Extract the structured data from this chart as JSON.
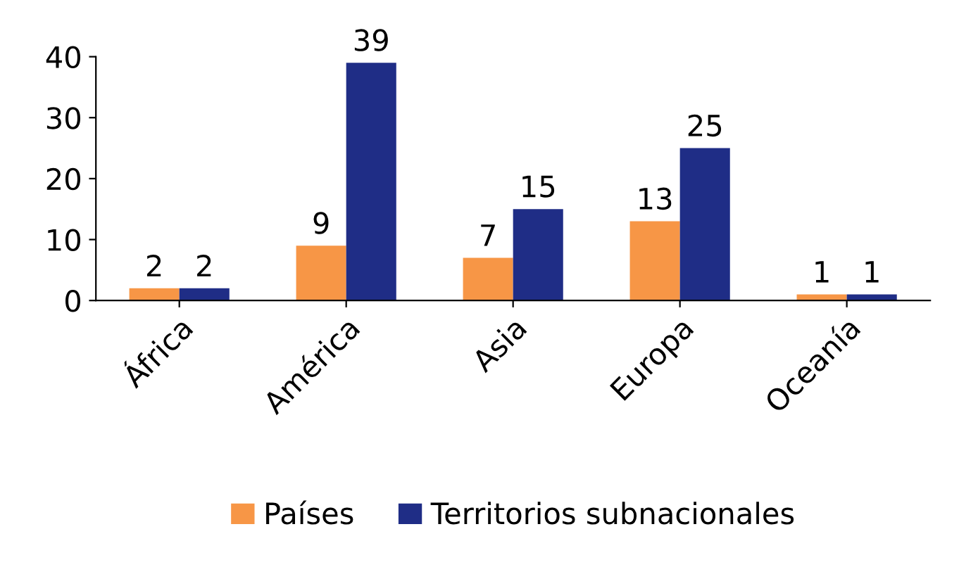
{
  "chart_data": {
    "type": "bar",
    "categories": [
      "África",
      "América",
      "Asia",
      "Europa",
      "Oceanía"
    ],
    "series": [
      {
        "name": "Países",
        "color": "#f79646",
        "values": [
          2,
          9,
          7,
          13,
          1
        ]
      },
      {
        "name": "Territorios subnacionales",
        "color": "#1f2d86",
        "values": [
          2,
          39,
          15,
          25,
          1
        ]
      }
    ],
    "ylim": [
      0,
      40
    ],
    "yticks": [
      0,
      10,
      20,
      30,
      40
    ],
    "grid": false,
    "data_labels": true,
    "legend": "bottom"
  }
}
